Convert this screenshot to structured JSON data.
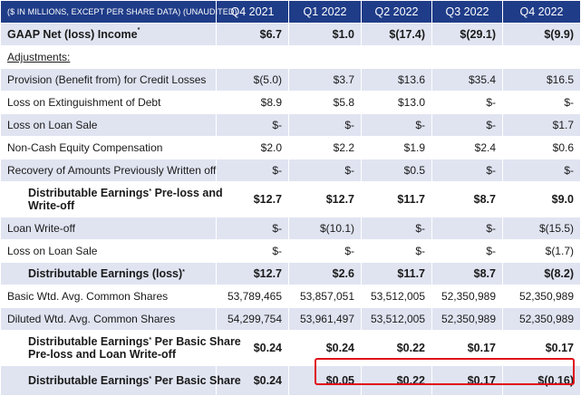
{
  "header": {
    "label": "($ IN MILLIONS, EXCEPT PER SHARE DATA) (UNAUDITED)",
    "periods": [
      "Q4 2021",
      "Q1 2022",
      "Q2 2022",
      "Q3 2022",
      "Q4 2022"
    ]
  },
  "rows": [
    {
      "label": "GAAP Net (loss) Income",
      "sup": "*",
      "values": [
        "$6.7",
        "$1.0",
        "$(17.4)",
        "$(29.1)",
        "$(9.9)"
      ]
    },
    {
      "label": "Adjustments:"
    },
    {
      "label": "Provision (Benefit from) for Credit Losses",
      "values": [
        "$(5.0)",
        "$3.7",
        "$13.6",
        "$35.4",
        "$16.5"
      ]
    },
    {
      "label": "Loss on Extinguishment of Debt",
      "values": [
        "$8.9",
        "$5.8",
        "$13.0",
        "$-",
        "$-"
      ]
    },
    {
      "label": "Loss on Loan Sale",
      "values": [
        "$-",
        "$-",
        "$-",
        "$-",
        "$1.7"
      ]
    },
    {
      "label": "Non-Cash Equity Compensation",
      "values": [
        "$2.0",
        "$2.2",
        "$1.9",
        "$2.4",
        "$0.6"
      ]
    },
    {
      "label": "Recovery of Amounts Previously Written off",
      "values": [
        "$-",
        "$-",
        "$0.5",
        "$-",
        "$-"
      ]
    },
    {
      "label_line1": "Distributable Earnings",
      "sup": "*",
      "label_line1_rest": " Pre-loss and",
      "label_line2": "Write-off",
      "values": [
        "$12.7",
        "$12.7",
        "$11.7",
        "$8.7",
        "$9.0"
      ]
    },
    {
      "label": "Loan Write-off",
      "values": [
        "$-",
        "$(10.1)",
        "$-",
        "$-",
        "$(15.5)"
      ]
    },
    {
      "label": "Loss on Loan Sale",
      "values": [
        "$-",
        "$-",
        "$-",
        "$-",
        "$(1.7)"
      ]
    },
    {
      "label": "Distributable Earnings (loss)",
      "sup": "*",
      "values": [
        "$12.7",
        "$2.6",
        "$11.7",
        "$8.7",
        "$(8.2)"
      ]
    },
    {
      "label": "Basic Wtd. Avg. Common Shares",
      "values": [
        "53,789,465",
        "53,857,051",
        "53,512,005",
        "52,350,989",
        "52,350,989"
      ]
    },
    {
      "label": "Diluted Wtd. Avg. Common Shares",
      "values": [
        "54,299,754",
        "53,961,497",
        "53,512,005",
        "52,350,989",
        "52,350,989"
      ]
    },
    {
      "label_line1": "Distributable Earnings",
      "sup": "*",
      "label_line1_rest": " Per Basic Share",
      "label_line2": "Pre-loss and Loan Write-off",
      "values": [
        "$0.24",
        "$0.24",
        "$0.22",
        "$0.17",
        "$0.17"
      ]
    },
    {
      "label": "Distributable Earnings",
      "sup": "*",
      "label_rest": " Per Basic Share",
      "values": [
        "$0.24",
        "$0.05",
        "$0.22",
        "$0.17",
        "$(0.16)"
      ]
    }
  ],
  "highlight_color": "#e0101a",
  "header_color": "#1f3c88",
  "row_shade_color": "#e0e4f1"
}
